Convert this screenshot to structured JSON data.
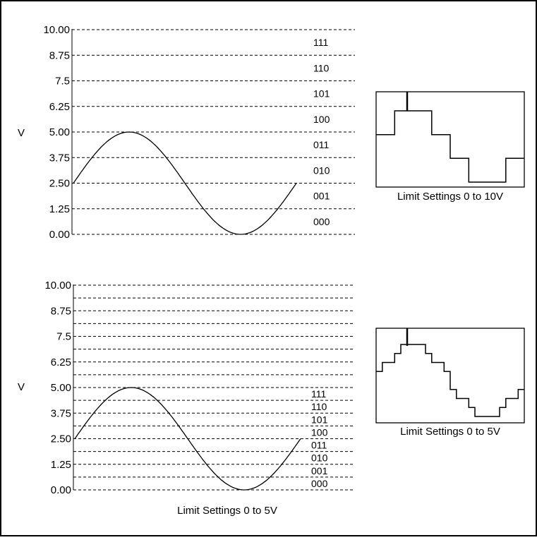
{
  "y_ticks": [
    "10.00",
    "8.75",
    "7.5",
    "6.25",
    "5.00",
    "3.75",
    "2.50",
    "1.25",
    "0.00"
  ],
  "y_label": "V",
  "codes": [
    "111",
    "110",
    "101",
    "100",
    "011",
    "010",
    "001",
    "000"
  ],
  "caption_top_inset": "Limit Settings 0 to 10V",
  "caption_bottom_inset": "Limit Settings 0 to 5V",
  "caption_bottom_panel": "Limit Settings 0 to 5V",
  "chart_data": [
    {
      "type": "line",
      "title": "",
      "ylabel": "V",
      "ylim": [
        0,
        10
      ],
      "y_ticks": [
        "10.00",
        "8.75",
        "7.5",
        "6.25",
        "5.00",
        "3.75",
        "2.50",
        "1.25",
        "0.00"
      ],
      "signal": {
        "shape": "sine",
        "offset_v": 2.5,
        "amplitude_v": 2.5,
        "cycles": 1
      },
      "code_levels": [
        "111",
        "110",
        "101",
        "100",
        "011",
        "010",
        "001",
        "000"
      ],
      "code_step_v": 1.25
    },
    {
      "type": "line",
      "title": "",
      "ylabel": "V",
      "ylim": [
        0,
        10
      ],
      "y_ticks": [
        "10.00",
        "8.75",
        "7.5",
        "6.25",
        "5.00",
        "3.75",
        "2.50",
        "1.25",
        "0.00"
      ],
      "signal": {
        "shape": "sine",
        "offset_v": 2.5,
        "amplitude_v": 2.5,
        "cycles": 1
      },
      "code_levels": [
        "111",
        "110",
        "101",
        "100",
        "011",
        "010",
        "001",
        "000"
      ],
      "code_step_v": 0.625
    }
  ]
}
